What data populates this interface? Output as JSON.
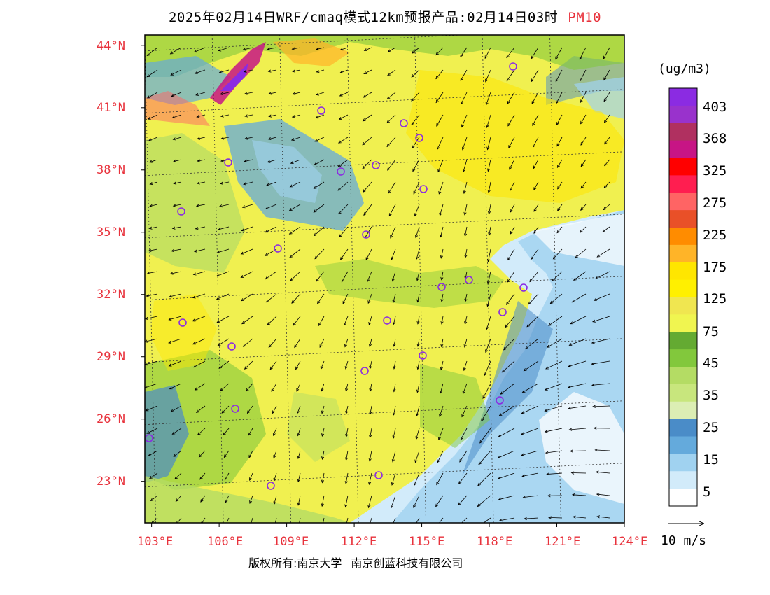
{
  "title": {
    "main": "2025年02月14日WRF/cmaq模式12km预报产品:02月14日03时",
    "pollutant": "PM10"
  },
  "lat_labels": [
    "44°N",
    "41°N",
    "38°N",
    "35°N",
    "32°N",
    "29°N",
    "26°N",
    "23°N"
  ],
  "lon_labels": [
    "103°E",
    "106°E",
    "109°E",
    "112°E",
    "115°E",
    "118°E",
    "121°E",
    "124°E"
  ],
  "colorbar": {
    "unit": "(ug/m3)",
    "labels": [
      "403",
      "368",
      "325",
      "275",
      "225",
      "175",
      "125",
      "75",
      "45",
      "35",
      "25",
      "15",
      "5"
    ],
    "colors": [
      "#8b2be2",
      "#9932cc",
      "#b03060",
      "#c71585",
      "#ff0000",
      "#ff1e50",
      "#ff6464",
      "#e95028",
      "#ff8c00",
      "#ffb428",
      "#ffe600",
      "#fff000",
      "#f0e650",
      "#f0f550",
      "#64aa32",
      "#82c83c",
      "#b4dc64",
      "#c8e67d",
      "#dceeb4",
      "#4a8cc8",
      "#64aadc",
      "#a0d2f0",
      "#d2ebfa",
      "#ffffff"
    ]
  },
  "wind": {
    "label": "10 m/s"
  },
  "copyright": {
    "left": "版权所有:南京大学",
    "right": "南京创蓝科技有限公司"
  },
  "map": {
    "lon_range": [
      102.7,
      124
    ],
    "lat_range": [
      21,
      44.5
    ],
    "land_base_color": "#f0f050",
    "sea_color": "#d2ebfa",
    "marker_color": "#8b2be2"
  }
}
